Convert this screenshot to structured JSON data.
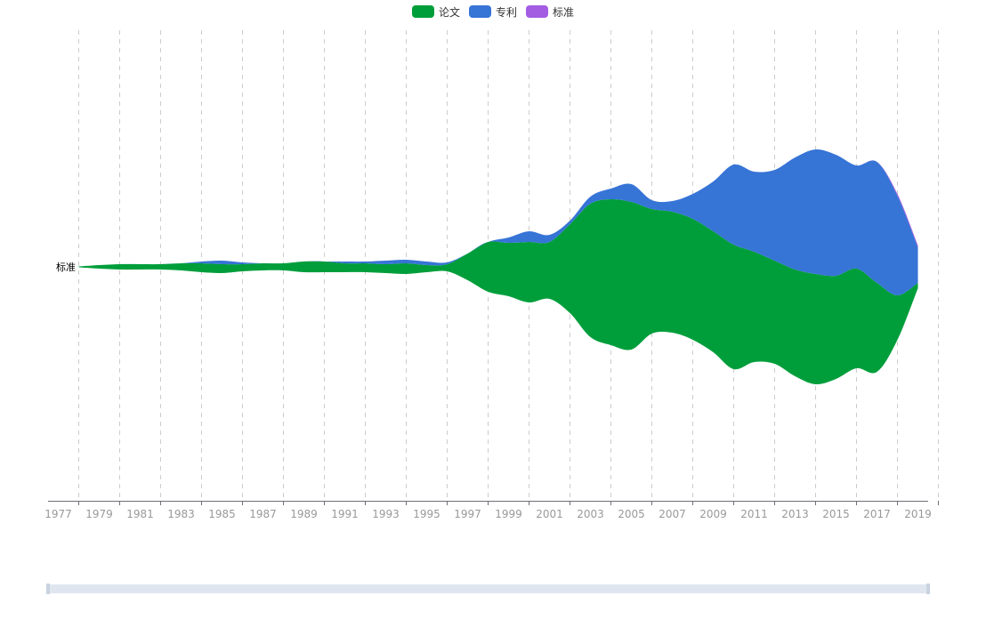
{
  "chart_data": {
    "type": "area",
    "subtype": "themeRiver",
    "title": "",
    "xlabel": "",
    "ylabel": "",
    "legend_position": "top-center",
    "grid": {
      "vertical_dashed": true
    },
    "x": [
      1978,
      1979,
      1980,
      1981,
      1982,
      1983,
      1984,
      1985,
      1986,
      1987,
      1988,
      1989,
      1990,
      1991,
      1992,
      1993,
      1994,
      1995,
      1996,
      1997,
      1998,
      1999,
      2000,
      2001,
      2002,
      2003,
      2004,
      2005,
      2006,
      2007,
      2008,
      2009,
      2010,
      2011,
      2012,
      2013,
      2014,
      2015,
      2016,
      2017,
      2018,
      2019
    ],
    "tick_labels": [
      "1977",
      "1979",
      "1981",
      "1983",
      "1985",
      "1987",
      "1989",
      "1991",
      "1993",
      "1995",
      "1997",
      "1999",
      "2001",
      "2003",
      "2005",
      "2007",
      "2009",
      "2011",
      "2013",
      "2015",
      "2017",
      "2019"
    ],
    "series": [
      {
        "name": "论文",
        "color": "#009e3b",
        "values": [
          0.5,
          2,
          3,
          3,
          3,
          4,
          5,
          5,
          4,
          4,
          4,
          6,
          6,
          5,
          5,
          5,
          6,
          4,
          4,
          15,
          28,
          30,
          34,
          32,
          50,
          75,
          82,
          83,
          70,
          68,
          68,
          68,
          70,
          62,
          58,
          60,
          62,
          58,
          56,
          50,
          25,
          3
        ]
      },
      {
        "name": "专利",
        "color": "#3674d6",
        "values": [
          0,
          0,
          0,
          0,
          0,
          0,
          1,
          2,
          1,
          0,
          0,
          0,
          0,
          1,
          1,
          2,
          2,
          2,
          1,
          0,
          0,
          3,
          6,
          4,
          2,
          4,
          6,
          10,
          5,
          6,
          14,
          28,
          45,
          45,
          51,
          63,
          70,
          68,
          58,
          68,
          56,
          20
        ]
      },
      {
        "name": "标准",
        "color": "#a35de2",
        "values": [
          0,
          0,
          0,
          0,
          0,
          0,
          0,
          0,
          0,
          0,
          0,
          0,
          0,
          0,
          0,
          0,
          0,
          0,
          0,
          0,
          0,
          0,
          0,
          0,
          0,
          0,
          0,
          0,
          0,
          0,
          0,
          0,
          0,
          0,
          0,
          0,
          0,
          0,
          0,
          0,
          1,
          1
        ]
      }
    ],
    "y_axis_label": "标准"
  }
}
